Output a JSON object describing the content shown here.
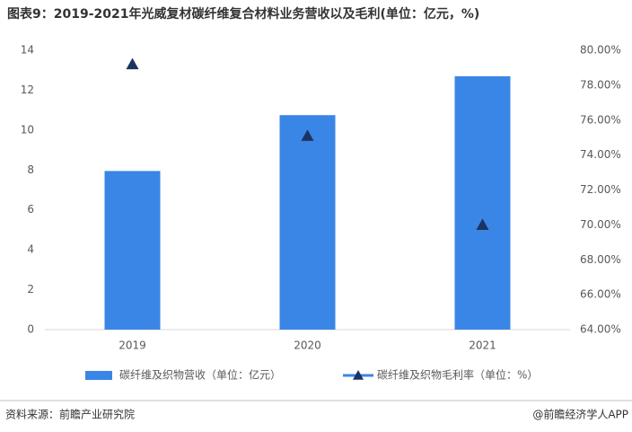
{
  "chart_data": {
    "type": "bar",
    "title": "图表9：2019-2021年光威复材碳纤维复合材料业务营收以及毛利(单位：亿元，%)",
    "categories": [
      "2019",
      "2020",
      "2021"
    ],
    "series": [
      {
        "name": "碳纤维及织物营收（单位：亿元）",
        "color": "#3a86e6",
        "values": [
          7.95,
          10.75,
          12.7
        ]
      },
      {
        "name": "碳纤维及织物毛利率（单位：%）",
        "color": "#1c3461",
        "axis": "y2",
        "marker": "triangle",
        "values": [
          79.2,
          75.1,
          70.0
        ]
      }
    ],
    "ylim": [
      0,
      14
    ],
    "yticks": [
      0,
      2,
      4,
      6,
      8,
      10,
      12,
      14
    ],
    "y2lim": [
      64,
      80
    ],
    "y2ticks": [
      {
        "value": 64,
        "label": "64.00%"
      },
      {
        "value": 66,
        "label": "66.00%"
      },
      {
        "value": 68,
        "label": "68.00%"
      },
      {
        "value": 70,
        "label": "70.00%"
      },
      {
        "value": 72,
        "label": "72.00%"
      },
      {
        "value": 74,
        "label": "74.00%"
      },
      {
        "value": 76,
        "label": "76.00%"
      },
      {
        "value": 78,
        "label": "78.00%"
      },
      {
        "value": 80,
        "label": "80.00%"
      }
    ],
    "grid": false,
    "legend": "bottom"
  },
  "footer": {
    "source": "资料来源：前瞻产业研究院",
    "credit": "@前瞻经济学人APP"
  }
}
